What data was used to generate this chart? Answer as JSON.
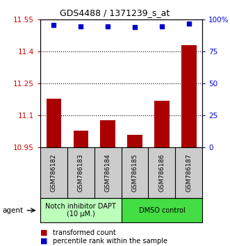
{
  "title": "GDS4488 / 1371239_s_at",
  "samples": [
    "GSM786182",
    "GSM786183",
    "GSM786184",
    "GSM786185",
    "GSM786186",
    "GSM786187"
  ],
  "bar_values": [
    11.18,
    11.03,
    11.08,
    11.01,
    11.17,
    11.43
  ],
  "percentile_values": [
    96,
    95,
    95,
    94,
    95,
    97
  ],
  "ylim_left": [
    10.95,
    11.55
  ],
  "ylim_right": [
    0,
    100
  ],
  "yticks_left": [
    10.95,
    11.1,
    11.25,
    11.4,
    11.55
  ],
  "yticks_right": [
    0,
    25,
    50,
    75,
    100
  ],
  "ytick_labels_left": [
    "10.95",
    "11.1",
    "11.25",
    "11.4",
    "11.55"
  ],
  "ytick_labels_right": [
    "0",
    "25",
    "50",
    "75",
    "100%"
  ],
  "bar_color": "#aa0000",
  "dot_color": "#0000cc",
  "group1_label": "Notch inhibitor DAPT\n(10 μM.)",
  "group2_label": "DMSO control",
  "group1_color": "#bbffbb",
  "group2_color": "#44dd44",
  "sample_bg_color": "#cccccc",
  "agent_label": "agent",
  "legend_bar_label": "transformed count",
  "legend_dot_label": "percentile rank within the sample",
  "n_group1": 3,
  "n_group2": 3
}
